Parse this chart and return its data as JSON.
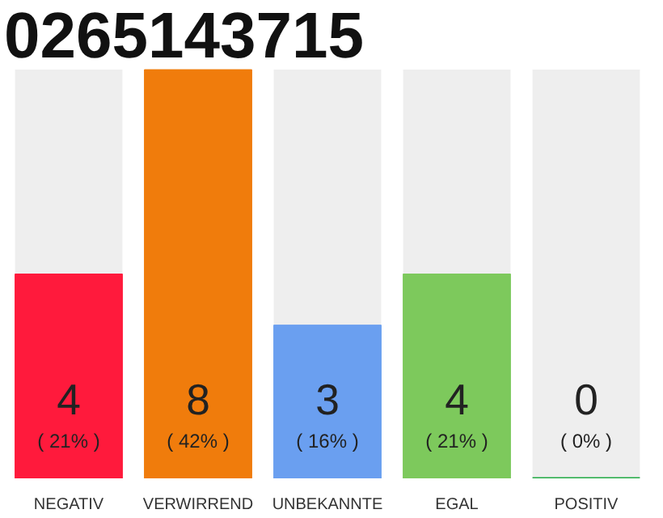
{
  "chart_data": {
    "type": "bar",
    "title": "0265143715",
    "categories": [
      "NEGATIV",
      "VERWIRREND",
      "UNBEKANNTE",
      "EGAL",
      "POSITIV"
    ],
    "values": [
      4,
      8,
      3,
      4,
      0
    ],
    "colors": [
      "#ff1a3c",
      "#f07c0c",
      "#6a9ff0",
      "#7dc95c",
      "#22aa44"
    ],
    "value_labels": [
      "4\n( 21% )",
      "8\n( 42% )",
      "3\n( 16% )",
      "4\n( 21% )",
      "0\n( 0% )"
    ],
    "grid": false
  }
}
